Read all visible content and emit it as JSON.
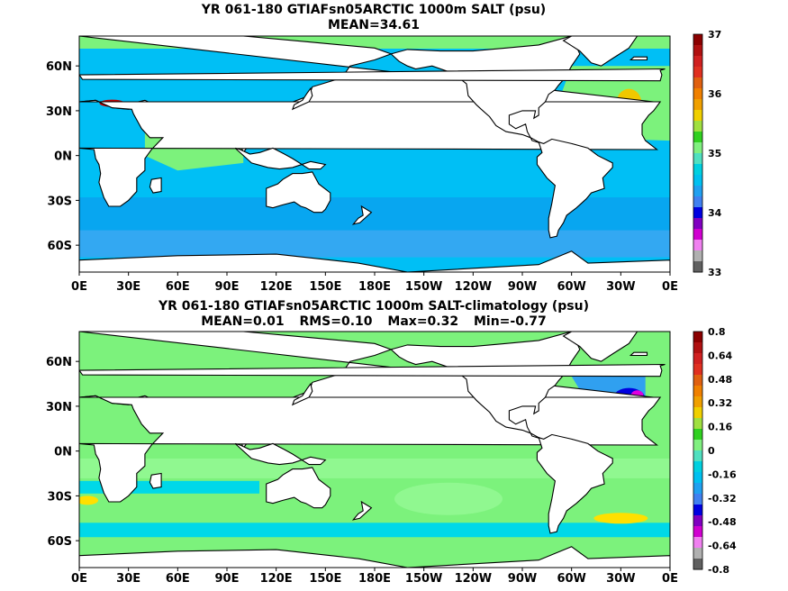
{
  "panels": [
    {
      "title": "YR 061-180 GTIAFsn05ARCTIC 1000m SALT (psu)",
      "stats": [
        "MEAN=34.61"
      ],
      "xticks": [
        "0E",
        "30E",
        "60E",
        "90E",
        "120E",
        "150E",
        "180E",
        "150W",
        "120W",
        "90W",
        "60W",
        "30W",
        "0E"
      ],
      "yticks": [
        "60N",
        "30N",
        "0N",
        "30S",
        "60S"
      ],
      "colorbar": {
        "labels": [
          "37",
          "36",
          "35",
          "34",
          "33"
        ],
        "colors": [
          "#8b0000",
          "#b01010",
          "#d02020",
          "#e03020",
          "#e06010",
          "#f08000",
          "#f0a000",
          "#f0d000",
          "#a0e040",
          "#30d020",
          "#80f080",
          "#50e0c0",
          "#00d0e0",
          "#00c0f0",
          "#20a0f0",
          "#4080f0",
          "#0000e0",
          "#8000c0",
          "#d000d0",
          "#f080f0",
          "#b0b0b0",
          "#606060"
        ]
      },
      "map_colors": {
        "ocean": "#00bff5",
        "deep": "#0aa0ef",
        "mid": "#33a8f2",
        "light": "#7cf27c",
        "teal": "#38e0b0",
        "land": "#ffffff",
        "coast": "#000000",
        "hot": "#c00000",
        "warm": "#f0c800"
      }
    },
    {
      "title": "YR 061-180 GTIAFsn05ARCTIC 1000m SALT-climatology (psu)",
      "stats": [
        "MEAN=0.01",
        "RMS=0.10",
        "Max=0.32",
        "Min=-0.77"
      ],
      "xticks": [
        "0E",
        "30E",
        "60E",
        "90E",
        "120E",
        "150E",
        "180E",
        "150W",
        "120W",
        "90W",
        "60W",
        "30W",
        "0E"
      ],
      "yticks": [
        "60N",
        "30N",
        "0N",
        "30S",
        "60S"
      ],
      "colorbar": {
        "labels": [
          "0.8",
          "0.64",
          "0.48",
          "0.32",
          "0.16",
          "0",
          "-0.16",
          "-0.32",
          "-0.48",
          "-0.64",
          "-0.8"
        ],
        "colors": [
          "#8b0000",
          "#b01010",
          "#d02020",
          "#e03020",
          "#e06010",
          "#f08000",
          "#f0a000",
          "#f0d000",
          "#a0e040",
          "#30d020",
          "#80f080",
          "#50e0c0",
          "#00d0e0",
          "#00c0f0",
          "#20a0f0",
          "#4080f0",
          "#0000e0",
          "#8000c0",
          "#d000d0",
          "#f080f0",
          "#b0b0b0",
          "#606060"
        ]
      },
      "map_colors": {
        "ocean": "#7cf27c",
        "deep": "#00d8e8",
        "mid": "#30a0f0",
        "light": "#90f890",
        "teal": "#40e0b0",
        "land": "#ffffff",
        "coast": "#000000",
        "hot": "#ffe000",
        "warm": "#e000e0"
      }
    }
  ]
}
